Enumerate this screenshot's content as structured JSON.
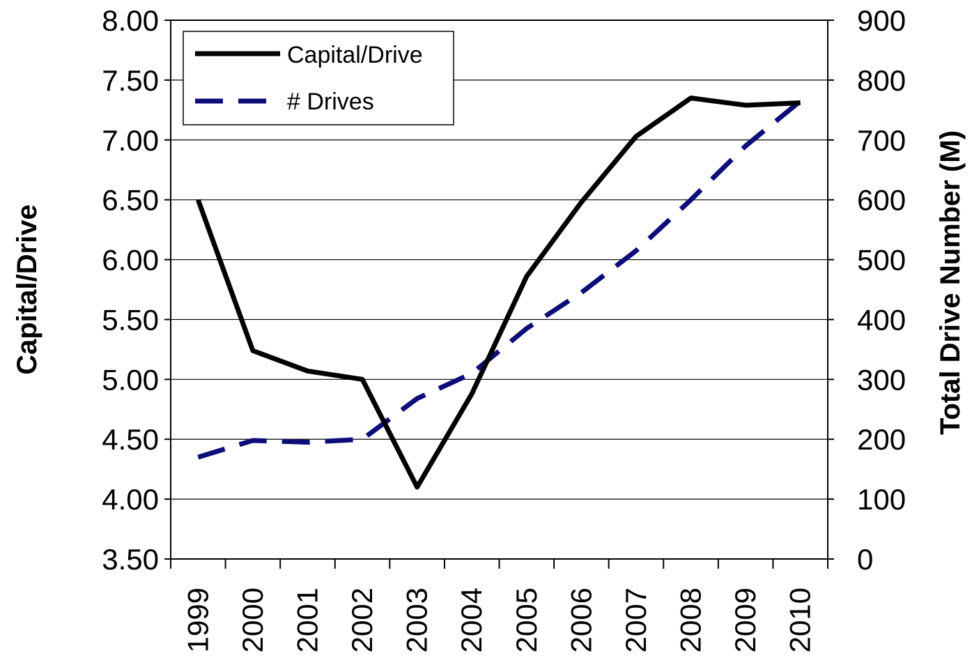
{
  "chart_data": {
    "type": "line",
    "categories": [
      "1999",
      "2000",
      "2001",
      "2002",
      "2003",
      "2004",
      "2005",
      "2006",
      "2007",
      "2008",
      "2009",
      "2010"
    ],
    "series": [
      {
        "name": "Capital/Drive",
        "axis": "left",
        "color": "#000000",
        "style": "solid",
        "values": [
          6.5,
          5.24,
          5.07,
          5.0,
          4.1,
          4.88,
          5.86,
          6.48,
          7.03,
          7.35,
          7.29,
          7.31
        ]
      },
      {
        "name": "# Drives",
        "axis": "right",
        "color": "#0d0d7a",
        "style": "dashed",
        "values": [
          170,
          198,
          195,
          200,
          268,
          310,
          385,
          445,
          515,
          600,
          690,
          765
        ]
      }
    ],
    "ylabel": "Capital/Drive",
    "ylabel_right": "Total Drive Number (M)",
    "ylim": [
      3.5,
      8.0
    ],
    "ylim_right": [
      0,
      900
    ],
    "yticks": [
      "3.50",
      "4.00",
      "4.50",
      "5.00",
      "5.50",
      "6.00",
      "6.50",
      "7.00",
      "7.50",
      "8.00"
    ],
    "yticks_right": [
      "0",
      "100",
      "200",
      "300",
      "400",
      "500",
      "600",
      "700",
      "800",
      "900"
    ],
    "grid": true,
    "legend_position": "top-left"
  }
}
